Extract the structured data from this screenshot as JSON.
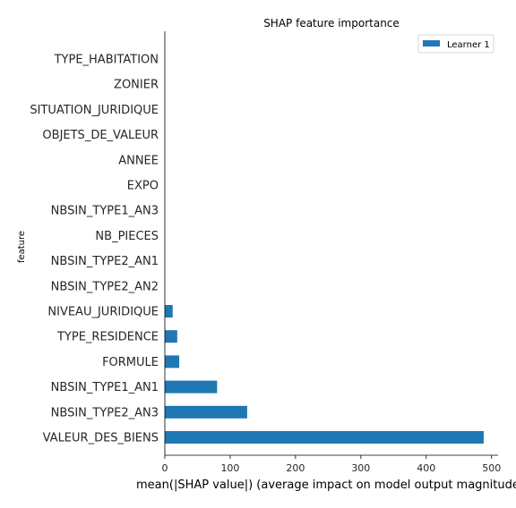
{
  "chart_data": {
    "type": "bar",
    "orientation": "horizontal",
    "title": "SHAP feature importance",
    "xlabel": "mean(|SHAP value|) (average impact on model output magnitude)",
    "ylabel": "feature",
    "categories": [
      "TYPE_HABITATION",
      "ZONIER",
      "SITUATION_JURIDIQUE",
      "OBJETS_DE_VALEUR",
      "ANNEE",
      "EXPO",
      "NBSIN_TYPE1_AN3",
      "NB_PIECES",
      "NBSIN_TYPE2_AN1",
      "NBSIN_TYPE2_AN2",
      "NIVEAU_JURIDIQUE",
      "TYPE_RESIDENCE",
      "FORMULE",
      "NBSIN_TYPE1_AN1",
      "NBSIN_TYPE2_AN3",
      "VALEUR_DES_BIENS"
    ],
    "series": [
      {
        "name": "Learner 1",
        "color": "#1f77b4",
        "values": [
          0,
          0,
          0,
          0,
          0,
          0,
          0,
          0,
          0,
          0,
          12,
          19,
          22,
          80,
          126,
          488
        ]
      }
    ],
    "xlim": [
      0,
      510
    ],
    "xticks": [
      0,
      100,
      200,
      300,
      400,
      500
    ],
    "legend_position": "top-right",
    "grid": false
  }
}
